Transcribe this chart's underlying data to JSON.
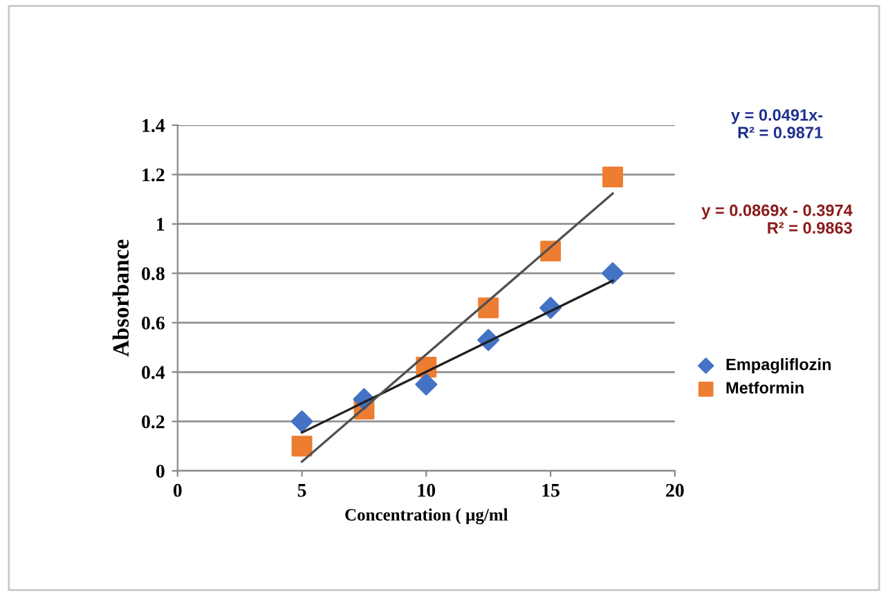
{
  "chart_data": {
    "type": "scatter",
    "xlabel": "Concentration ( µg/ml",
    "ylabel": "Absorbance",
    "xlim": [
      0,
      20
    ],
    "xticks": [
      0,
      5,
      10,
      15,
      20
    ],
    "ylim": [
      0,
      1.4
    ],
    "yticks": [
      0,
      0.2,
      0.4,
      0.6,
      0.8,
      1,
      1.2,
      1.4
    ],
    "grid": "y",
    "legend": "right",
    "series": [
      {
        "name": "Empagliflozin",
        "color": "#4472c4",
        "marker": "diamond",
        "x": [
          5,
          7.5,
          10,
          12.5,
          15,
          17.5
        ],
        "values": [
          0.2,
          0.29,
          0.35,
          0.53,
          0.66,
          0.8
        ]
      },
      {
        "name": "Metformin",
        "color": "#ed7d31",
        "marker": "square",
        "x": [
          5,
          7.5,
          10,
          12.5,
          15,
          17.5
        ],
        "values": [
          0.1,
          0.25,
          0.42,
          0.66,
          0.89,
          1.19
        ]
      },
      {
        "type": "line",
        "color": "#202020",
        "x": [
          5,
          17.5
        ],
        "values": [
          0.155,
          0.77
        ]
      },
      {
        "type": "line",
        "color": "#505050",
        "x": [
          5,
          17.5
        ],
        "values": [
          0.037,
          1.123
        ]
      }
    ],
    "annotations": [
      "y = 0.0491x-\nR² = 0.9871",
      "y = 0.0869x - 0.3974\nR² = 0.9863"
    ]
  }
}
